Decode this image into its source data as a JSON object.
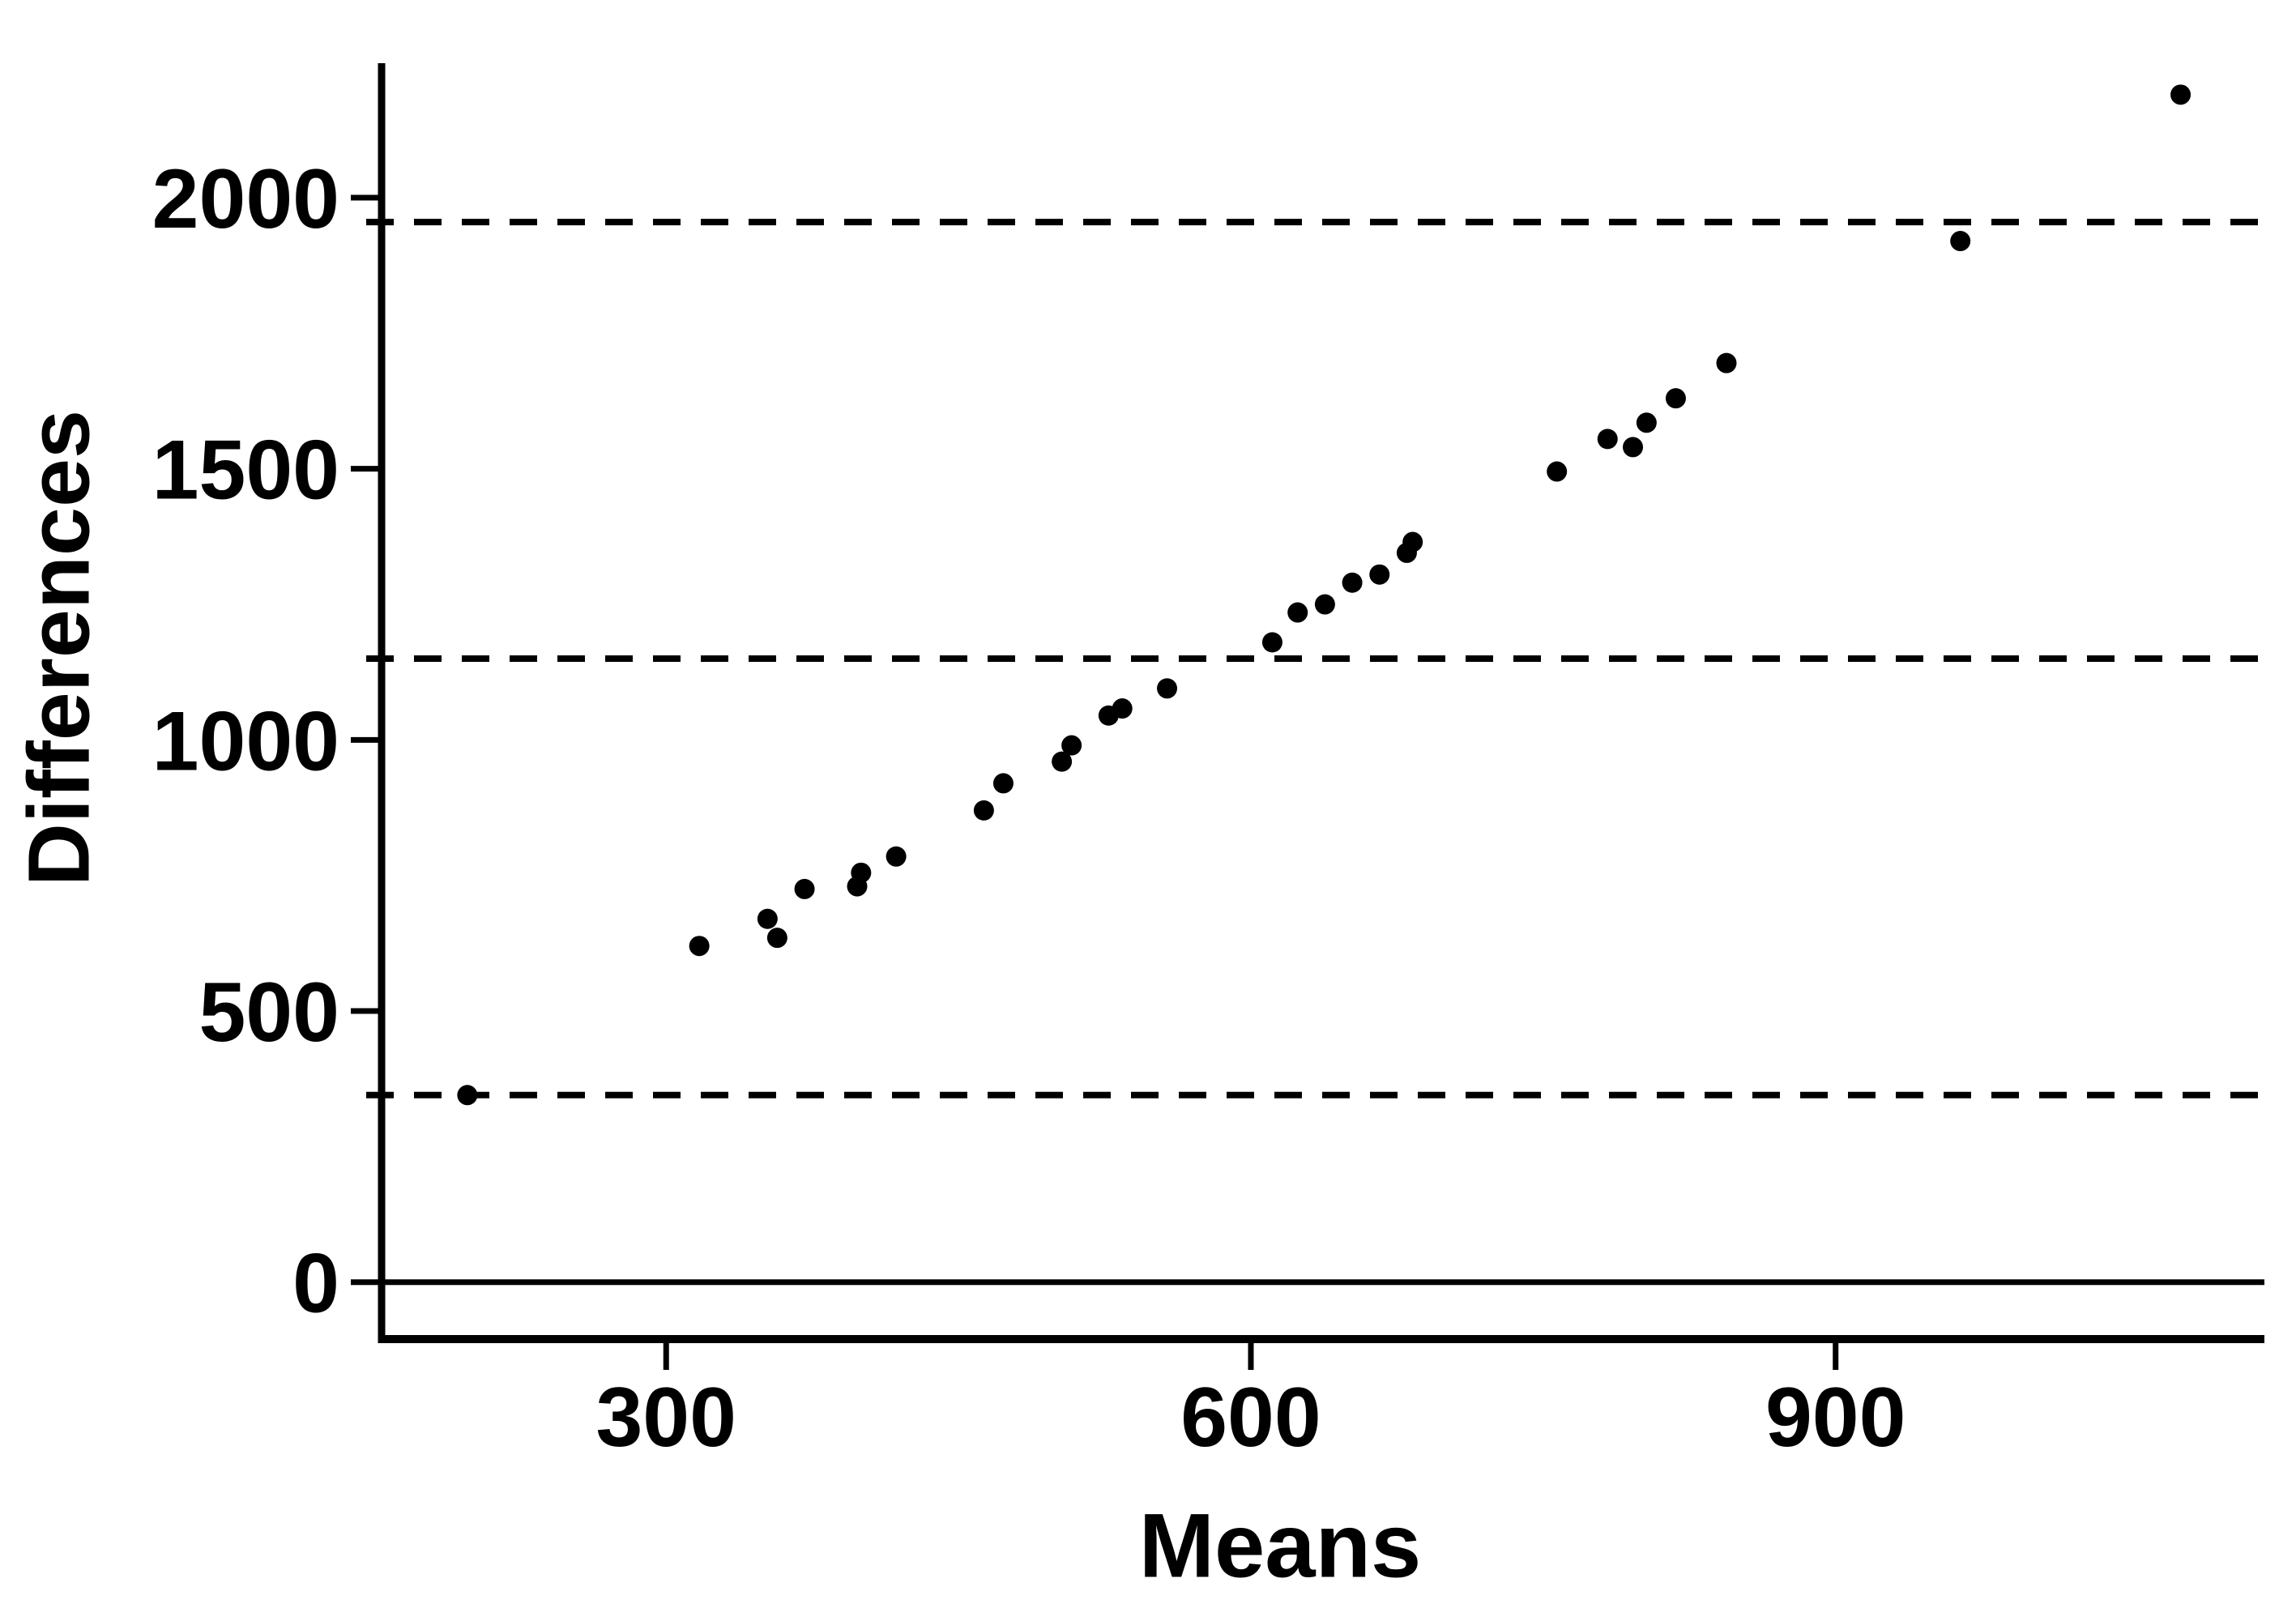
{
  "figure": {
    "background": "#ffffff",
    "ink": "#000000"
  },
  "chart_data": {
    "type": "scatter",
    "title": "",
    "xlabel": "Means",
    "ylabel": "Differences",
    "x_tick_values": [
      300,
      600,
      900
    ],
    "x_tick_labels": [
      "300",
      "600",
      "900"
    ],
    "y_tick_values": [
      0,
      500,
      1000,
      1500,
      2000
    ],
    "y_tick_labels": [
      "0",
      "500",
      "1000",
      "1500",
      "2000"
    ],
    "xlim": [
      154,
      1120
    ],
    "ylim": [
      -105,
      2248
    ],
    "grid": false,
    "legend": "none",
    "marker": {
      "shape": "circle",
      "color": "#000000",
      "radius_px": 12.5
    },
    "zero_line_y": 0,
    "dashed_reference_lines_y": [
      345,
      1150,
      1955
    ],
    "points": [
      [
        198,
        345
      ],
      [
        317,
        620
      ],
      [
        352,
        670
      ],
      [
        357,
        635
      ],
      [
        371,
        725
      ],
      [
        398,
        730
      ],
      [
        400,
        755
      ],
      [
        418,
        785
      ],
      [
        463,
        870
      ],
      [
        473,
        920
      ],
      [
        503,
        960
      ],
      [
        508,
        990
      ],
      [
        527,
        1045
      ],
      [
        534,
        1058
      ],
      [
        557,
        1095
      ],
      [
        611,
        1180
      ],
      [
        624,
        1235
      ],
      [
        638,
        1250
      ],
      [
        652,
        1290
      ],
      [
        666,
        1305
      ],
      [
        680,
        1345
      ],
      [
        683,
        1365
      ],
      [
        757,
        1495
      ],
      [
        783,
        1555
      ],
      [
        796,
        1540
      ],
      [
        803,
        1585
      ],
      [
        818,
        1630
      ],
      [
        844,
        1695
      ],
      [
        964,
        1920
      ],
      [
        1077,
        2190
      ]
    ]
  }
}
